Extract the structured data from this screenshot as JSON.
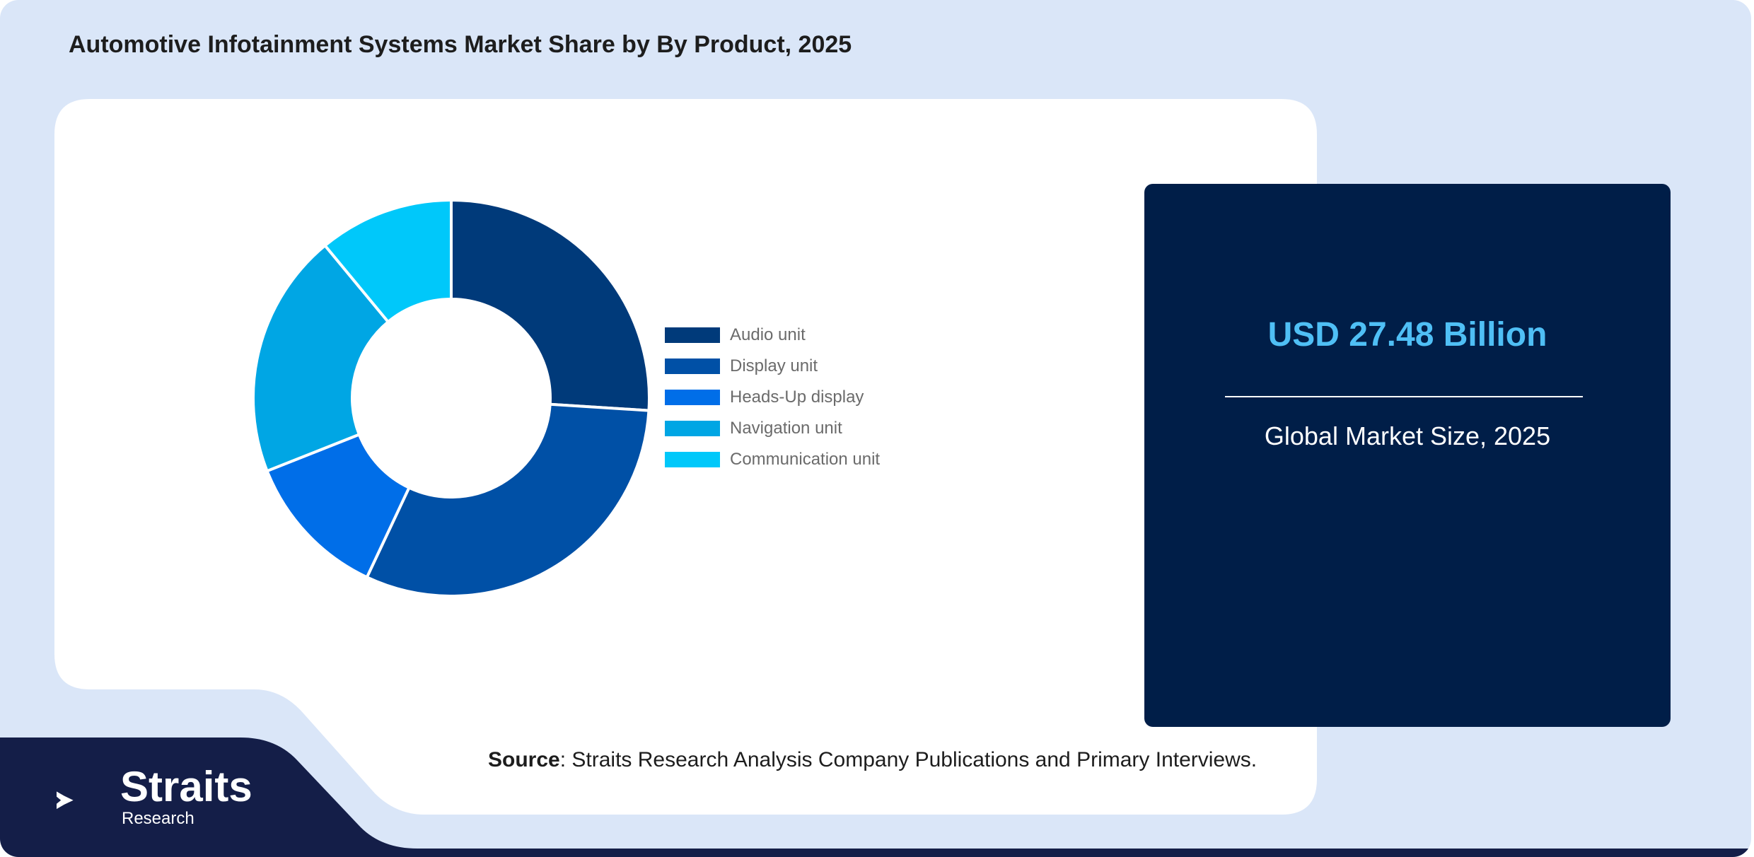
{
  "title": "Automotive Infotainment Systems Market Share by By Product, 2025",
  "colors": {
    "background": "#dae6f8",
    "panel": "#ffffff",
    "kpi_panel": "#001e48",
    "kpi_value": "#4fbff5",
    "footer": "#141e48"
  },
  "chart_data": {
    "type": "pie",
    "variant": "donut",
    "title": "Automotive Infotainment Systems Market Share by By Product, 2025",
    "legend_position": "right",
    "categories": [
      "Audio unit",
      "Display unit",
      "Heads-Up display",
      "Navigation unit",
      "Communication unit"
    ],
    "values": [
      26,
      31,
      12,
      20,
      11
    ],
    "colors": [
      "#003a7a",
      "#0050a6",
      "#006ee8",
      "#00a6e4",
      "#00c8fa"
    ]
  },
  "kpi": {
    "value": "USD 27.48 Billion",
    "caption": "Global Market Size, 2025"
  },
  "source": {
    "label": "Source",
    "text": ": Straits Research Analysis Company Publications and Primary Interviews."
  },
  "logo": {
    "name": "Straits",
    "sub": "Research",
    "icon": "straits-arrow-icon"
  }
}
